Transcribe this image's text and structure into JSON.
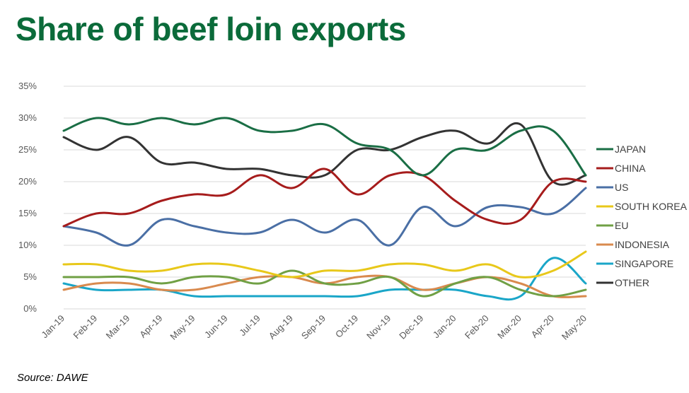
{
  "title": "Share of beef loin exports",
  "source": "Source: DAWE",
  "chart_data": {
    "type": "line",
    "title": "Share of beef loin exports",
    "xlabel": "",
    "ylabel": "",
    "ylim": [
      0,
      35
    ],
    "y_ticks": [
      "0%",
      "5%",
      "10%",
      "15%",
      "20%",
      "25%",
      "30%",
      "35%"
    ],
    "grid": true,
    "legend_position": "right",
    "categories": [
      "Jan-19",
      "Feb-19",
      "Mar-19",
      "Apr-19",
      "May-19",
      "Jun-19",
      "Jul-19",
      "Aug-19",
      "Sep-19",
      "Oct-19",
      "Nov-19",
      "Dec-19",
      "Jan-20",
      "Feb-20",
      "Mar-20",
      "Apr-20",
      "May-20"
    ],
    "series": [
      {
        "name": "JAPAN",
        "color": "#1a6e45",
        "values": [
          28,
          30,
          29,
          30,
          29,
          30,
          28,
          28,
          29,
          26,
          25,
          21,
          25,
          25,
          28,
          28,
          21
        ]
      },
      {
        "name": "CHINA",
        "color": "#a61c1c",
        "values": [
          13,
          15,
          15,
          17,
          18,
          18,
          21,
          19,
          22,
          18,
          21,
          21,
          17,
          14,
          14,
          20,
          20
        ]
      },
      {
        "name": "US",
        "color": "#4a6fa5",
        "values": [
          13,
          12,
          10,
          14,
          13,
          12,
          12,
          14,
          12,
          14,
          10,
          16,
          13,
          16,
          16,
          15,
          19
        ]
      },
      {
        "name": "SOUTH KOREA",
        "color": "#e8c81a",
        "values": [
          7,
          7,
          6,
          6,
          7,
          7,
          6,
          5,
          6,
          6,
          7,
          7,
          6,
          7,
          5,
          6,
          9
        ]
      },
      {
        "name": "EU",
        "color": "#70a045",
        "values": [
          5,
          5,
          5,
          4,
          5,
          5,
          4,
          6,
          4,
          4,
          5,
          2,
          4,
          5,
          3,
          2,
          3
        ]
      },
      {
        "name": "INDONESIA",
        "color": "#d98a4e",
        "values": [
          3,
          4,
          4,
          3,
          3,
          4,
          5,
          5,
          4,
          5,
          5,
          3,
          4,
          5,
          4,
          2,
          2
        ]
      },
      {
        "name": "SINGAPORE",
        "color": "#1aa6c8",
        "values": [
          4,
          3,
          3,
          3,
          2,
          2,
          2,
          2,
          2,
          2,
          3,
          3,
          3,
          2,
          2,
          8,
          4
        ]
      },
      {
        "name": "OTHER",
        "color": "#333333",
        "values": [
          27,
          25,
          27,
          23,
          23,
          22,
          22,
          21,
          21,
          25,
          25,
          27,
          28,
          26,
          29,
          20,
          21
        ]
      }
    ]
  }
}
